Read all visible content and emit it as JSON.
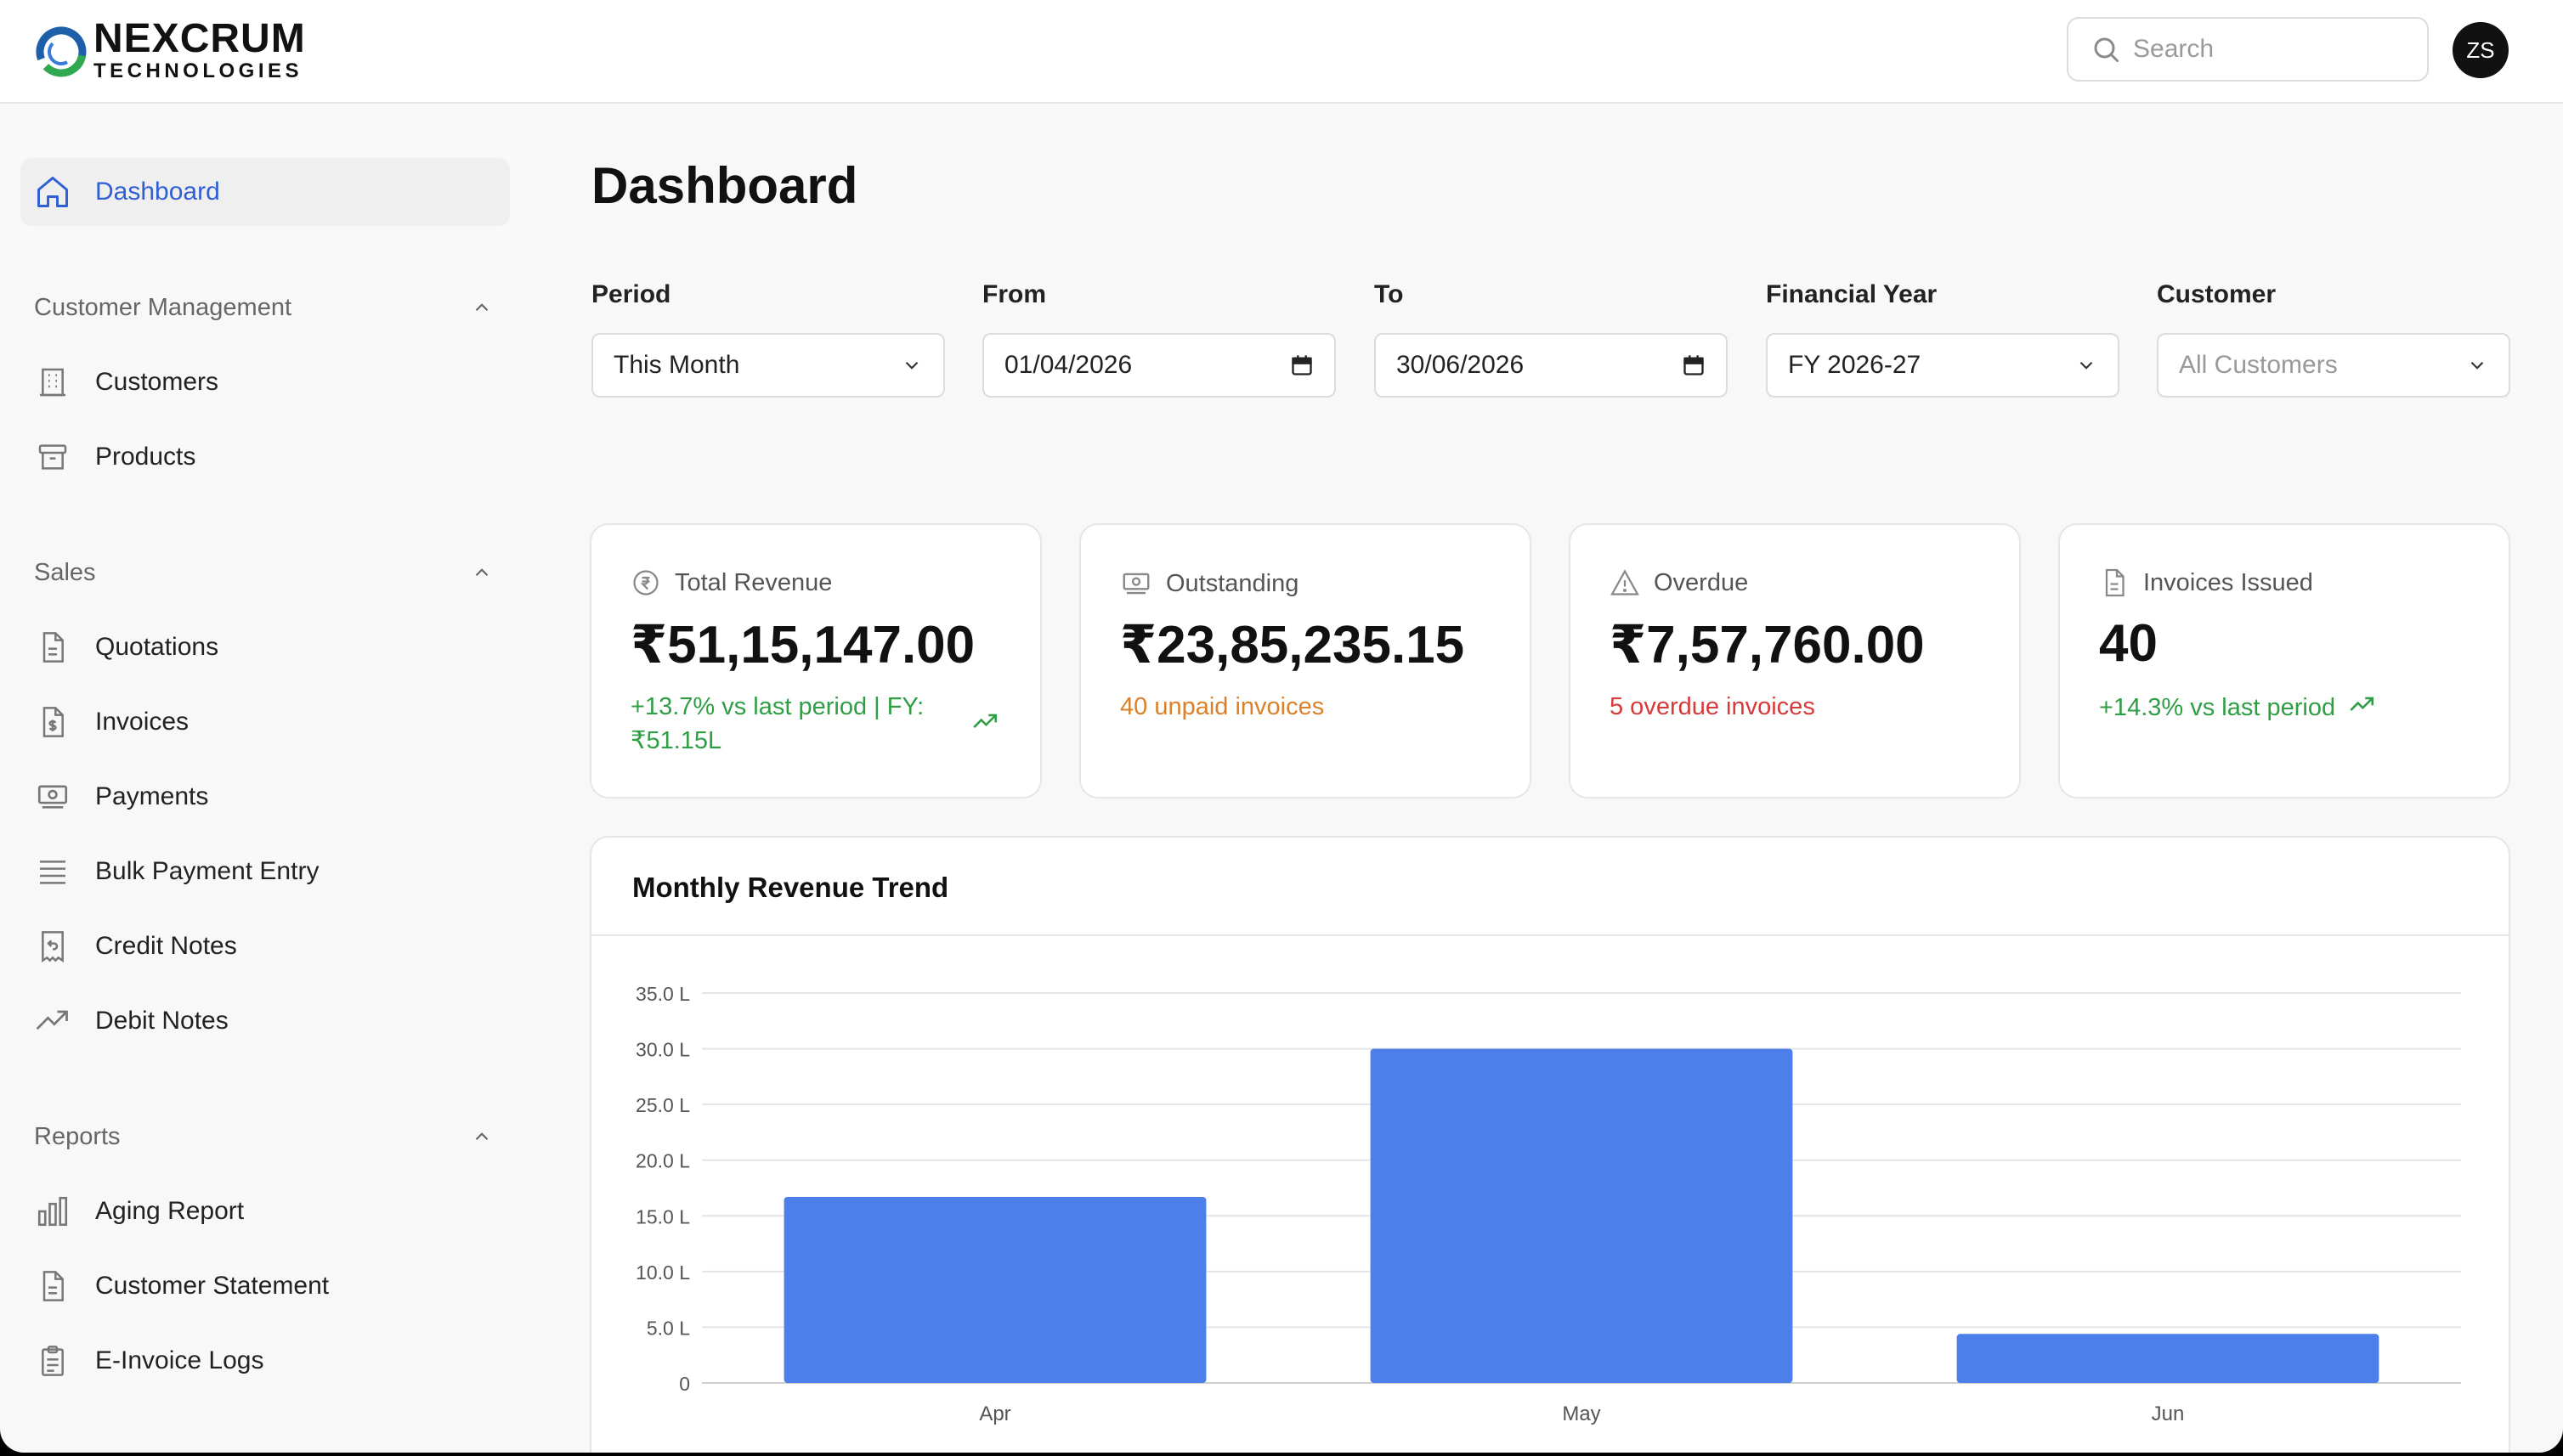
{
  "brand": {
    "name": "NEXCRUM",
    "sub": "TECHNOLOGIES"
  },
  "header": {
    "search_placeholder": "Search",
    "avatar_initials": "ZS"
  },
  "sidebar": {
    "dashboard": {
      "label": "Dashboard",
      "icon": "home-icon"
    },
    "sections": [
      {
        "title": "Customer Management",
        "items": [
          {
            "label": "Customers",
            "icon": "building-icon"
          },
          {
            "label": "Products",
            "icon": "archive-icon"
          }
        ]
      },
      {
        "title": "Sales",
        "items": [
          {
            "label": "Quotations",
            "icon": "document-icon"
          },
          {
            "label": "Invoices",
            "icon": "invoice-dollar-icon"
          },
          {
            "label": "Payments",
            "icon": "banknote-icon"
          },
          {
            "label": "Bulk Payment Entry",
            "icon": "list-icon"
          },
          {
            "label": "Credit Notes",
            "icon": "receipt-return-icon"
          },
          {
            "label": "Debit Notes",
            "icon": "trending-up-icon"
          }
        ]
      },
      {
        "title": "Reports",
        "items": [
          {
            "label": "Aging Report",
            "icon": "bar-chart-icon"
          },
          {
            "label": "Customer Statement",
            "icon": "document-icon"
          },
          {
            "label": "E-Invoice Logs",
            "icon": "clipboard-icon"
          }
        ]
      }
    ]
  },
  "page": {
    "title": "Dashboard"
  },
  "filters": {
    "period": {
      "label": "Period",
      "value": "This Month"
    },
    "from": {
      "label": "From",
      "value": "01/04/2026"
    },
    "to": {
      "label": "To",
      "value": "30/06/2026"
    },
    "financial_year": {
      "label": "Financial Year",
      "value": "FY 2026-27"
    },
    "customer": {
      "label": "Customer",
      "placeholder": "All Customers"
    }
  },
  "cards": {
    "total_revenue": {
      "title": "Total Revenue",
      "value": "₹51,15,147.00",
      "sub_line1": "+13.7% vs last period | FY:",
      "sub_line2": "₹51.15L",
      "color": "#2f9e44"
    },
    "outstanding": {
      "title": "Outstanding",
      "value": "₹23,85,235.15",
      "sub": "40 unpaid invoices",
      "color": "#d9822b"
    },
    "overdue": {
      "title": "Overdue",
      "value": "₹7,57,760.00",
      "sub": "5 overdue invoices",
      "color": "#d63a3a"
    },
    "invoices_issued": {
      "title": "Invoices Issued",
      "value": "40",
      "sub": "+14.3% vs last period",
      "color": "#2f9e44"
    }
  },
  "chart_data": {
    "type": "bar",
    "title": "Monthly Revenue Trend",
    "categories": [
      "Apr",
      "May",
      "Jun"
    ],
    "values": [
      16.7,
      30.0,
      4.4
    ],
    "unit": "L",
    "ylim": [
      0,
      35
    ],
    "yticks": [
      "0",
      "5.0 L",
      "10.0 L",
      "15.0 L",
      "20.0 L",
      "25.0 L",
      "30.0 L",
      "35.0 L"
    ],
    "grid": true,
    "bar_color": "#4c7fea"
  }
}
